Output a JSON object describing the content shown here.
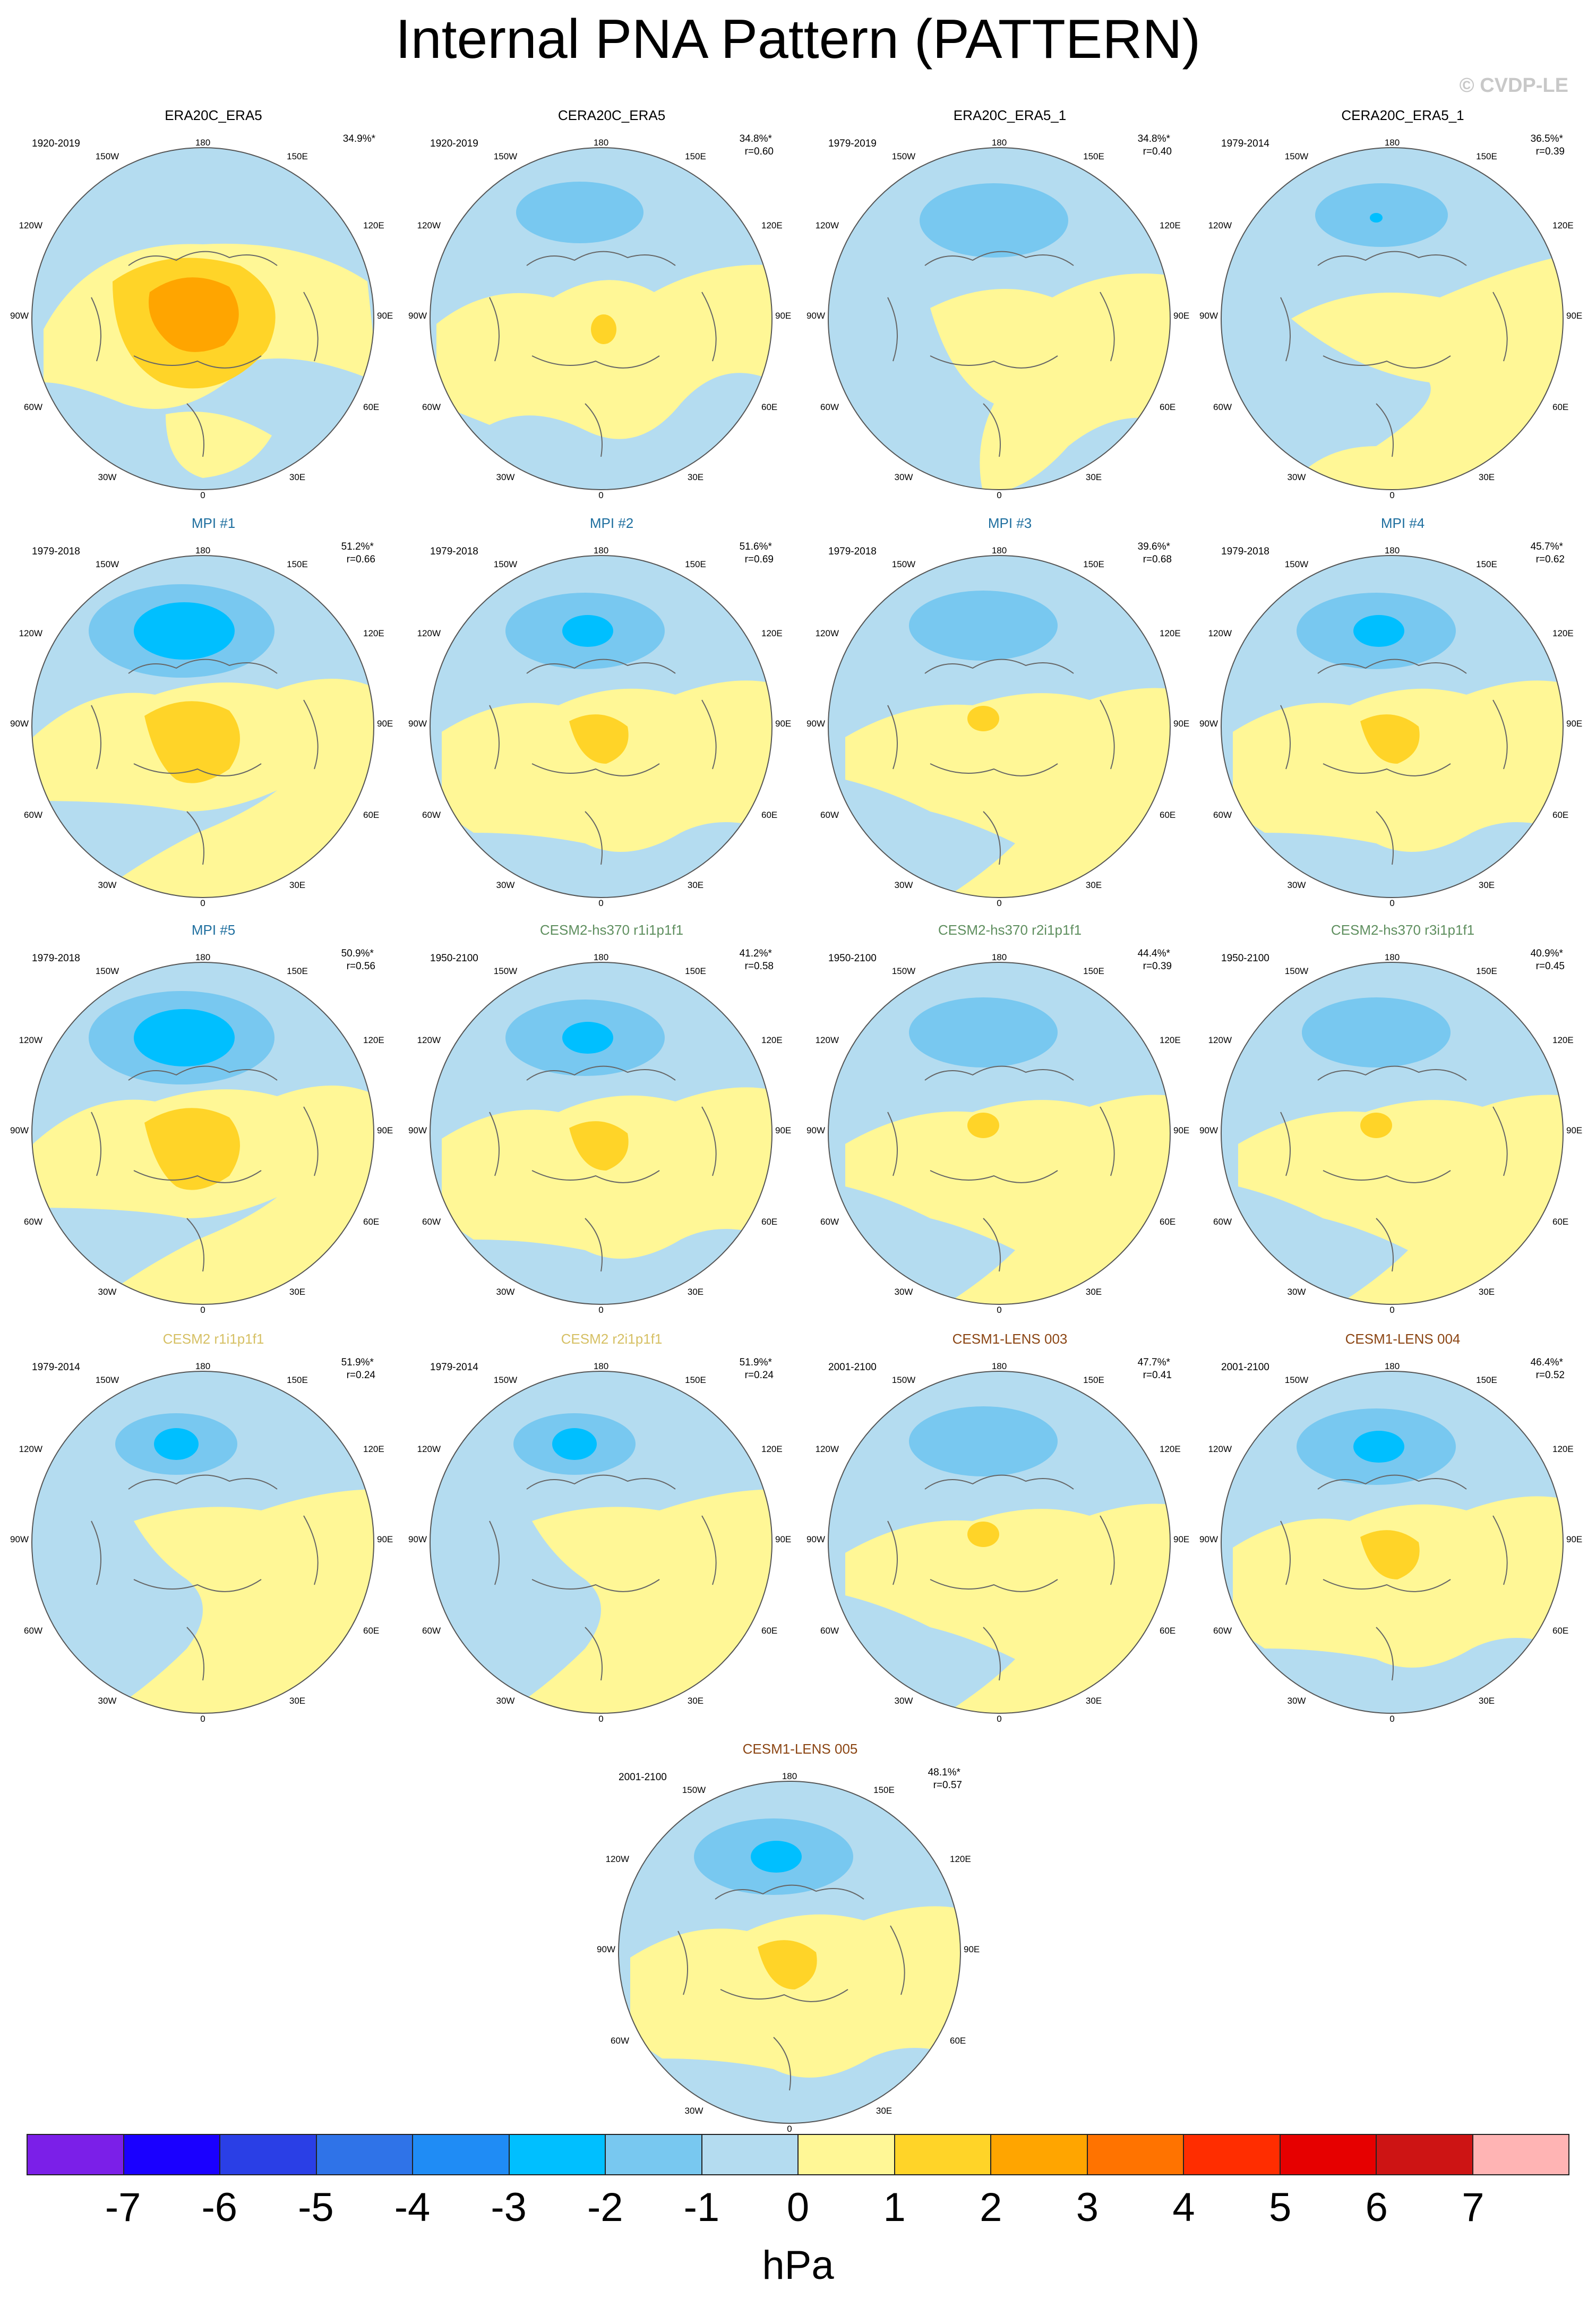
{
  "title": "Internal PNA Pattern (PATTERN)",
  "credit": "© CVDP-LE",
  "colors": {
    "title_black": "#000000",
    "mpi_label": "#1f6f9f",
    "cesm2hs_label": "#5f8f5f",
    "cesm2_label": "#d6c064",
    "cesm1_label": "#8b4513"
  },
  "longitude_labels": {
    "top": "180",
    "tl": "150W",
    "tr": "150E",
    "ul": "120W",
    "ur": "120E",
    "l": "90W",
    "r": "90E",
    "ll": "60W",
    "lr": "60E",
    "bl": "30W",
    "br": "30E",
    "bottom": "0"
  },
  "panels": [
    {
      "name": "ERA20C_ERA5",
      "name_color": "#000000",
      "period": "1920-2019",
      "pct": "34.9%*",
      "r": "",
      "style": "era20c"
    },
    {
      "name": "CERA20C_ERA5",
      "name_color": "#000000",
      "period": "1920-2019",
      "pct": "34.8%*",
      "r": "r=0.60",
      "style": "cera"
    },
    {
      "name": "ERA20C_ERA5_1",
      "name_color": "#000000",
      "period": "1979-2019",
      "pct": "34.8%*",
      "r": "r=0.40",
      "style": "weak"
    },
    {
      "name": "CERA20C_ERA5_1",
      "name_color": "#000000",
      "period": "1979-2014",
      "pct": "36.5%*",
      "r": "r=0.39",
      "style": "weak2"
    },
    {
      "name": "MPI #1",
      "name_color": "#1f6f9f",
      "period": "1979-2018",
      "pct": "51.2%*",
      "r": "r=0.66",
      "style": "strong"
    },
    {
      "name": "MPI #2",
      "name_color": "#1f6f9f",
      "period": "1979-2018",
      "pct": "51.6%*",
      "r": "r=0.69",
      "style": "medium"
    },
    {
      "name": "MPI #3",
      "name_color": "#1f6f9f",
      "period": "1979-2018",
      "pct": "39.6%*",
      "r": "r=0.68",
      "style": "mild"
    },
    {
      "name": "MPI #4",
      "name_color": "#1f6f9f",
      "period": "1979-2018",
      "pct": "45.7%*",
      "r": "r=0.62",
      "style": "medium"
    },
    {
      "name": "MPI #5",
      "name_color": "#1f6f9f",
      "period": "1979-2018",
      "pct": "50.9%*",
      "r": "r=0.56",
      "style": "strong"
    },
    {
      "name": "CESM2-hs370 r1i1p1f1",
      "name_color": "#5f8f5f",
      "period": "1950-2100",
      "pct": "41.2%*",
      "r": "r=0.58",
      "style": "medium"
    },
    {
      "name": "CESM2-hs370 r2i1p1f1",
      "name_color": "#5f8f5f",
      "period": "1950-2100",
      "pct": "44.4%*",
      "r": "r=0.39",
      "style": "mild"
    },
    {
      "name": "CESM2-hs370 r3i1p1f1",
      "name_color": "#5f8f5f",
      "period": "1950-2100",
      "pct": "40.9%*",
      "r": "r=0.45",
      "style": "mild"
    },
    {
      "name": "CESM2 r1i1p1f1",
      "name_color": "#d6c064",
      "period": "1979-2014",
      "pct": "51.9%*",
      "r": "r=0.24",
      "style": "cesm2"
    },
    {
      "name": "CESM2 r2i1p1f1",
      "name_color": "#d6c064",
      "period": "1979-2014",
      "pct": "51.9%*",
      "r": "r=0.24",
      "style": "cesm2"
    },
    {
      "name": "CESM1-LENS 003",
      "name_color": "#8b4513",
      "period": "2001-2100",
      "pct": "47.7%*",
      "r": "r=0.41",
      "style": "mild"
    },
    {
      "name": "CESM1-LENS 004",
      "name_color": "#8b4513",
      "period": "2001-2100",
      "pct": "46.4%*",
      "r": "r=0.52",
      "style": "medium"
    },
    {
      "name": "CESM1-LENS 005",
      "name_color": "#8b4513",
      "period": "2001-2100",
      "pct": "48.1%*",
      "r": "r=0.57",
      "style": "medium"
    }
  ],
  "colorbar": {
    "colors": [
      "#7b1fe8",
      "#1a00ff",
      "#2a3fe6",
      "#2f73e8",
      "#1f8cf5",
      "#00bfff",
      "#78c8f0",
      "#b4dcf0",
      "#fff796",
      "#ffd428",
      "#ffa500",
      "#ff7300",
      "#ff2d00",
      "#e60000",
      "#cd1414",
      "#ffb4b4"
    ],
    "ticks": [
      "-7",
      "-6",
      "-5",
      "-4",
      "-3",
      "-2",
      "-1",
      "0",
      "1",
      "2",
      "3",
      "4",
      "5",
      "6",
      "7"
    ],
    "units": "hPa"
  }
}
